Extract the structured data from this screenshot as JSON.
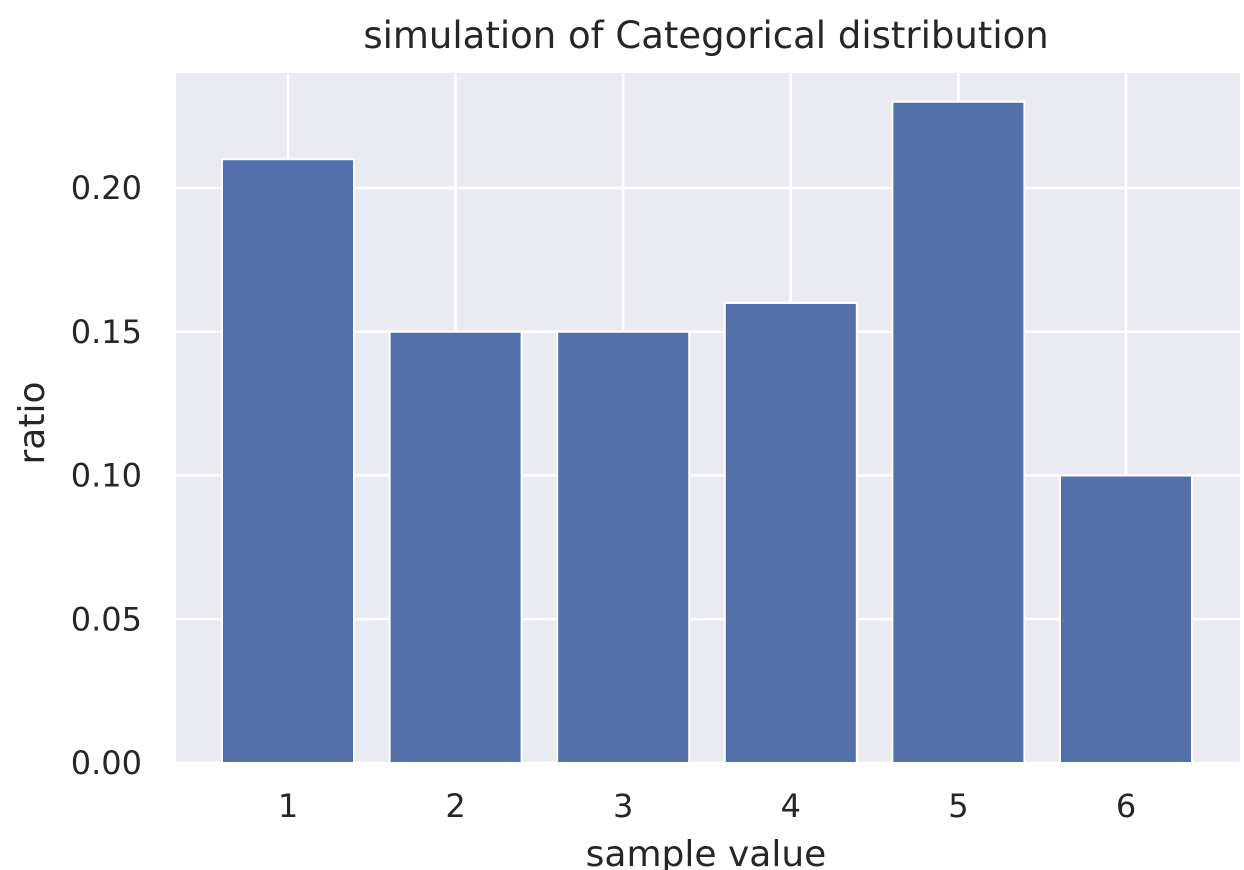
{
  "chart_data": {
    "type": "bar",
    "title": "simulation of Categorical distribution",
    "xlabel": "sample value",
    "ylabel": "ratio",
    "categories": [
      "1",
      "2",
      "3",
      "4",
      "5",
      "6"
    ],
    "values": [
      0.21,
      0.15,
      0.15,
      0.16,
      0.23,
      0.1
    ],
    "ylim": [
      0,
      0.24
    ],
    "yticks": [
      "0.00",
      "0.05",
      "0.10",
      "0.15",
      "0.20"
    ],
    "grid": true,
    "legend": "none",
    "colors": {
      "bar": "#5470aa",
      "plot_background": "#eaeaf2",
      "grid": "#ffffff",
      "text": "#262626"
    }
  }
}
